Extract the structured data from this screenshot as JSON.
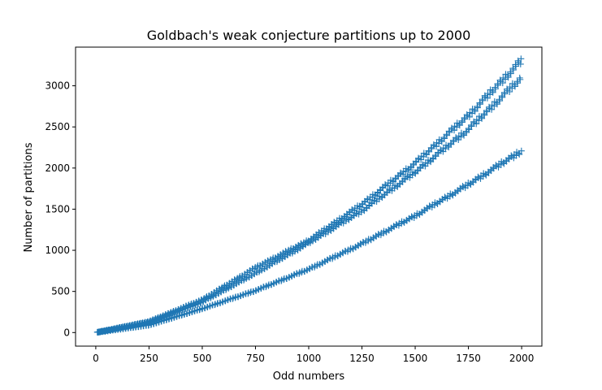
{
  "chart_data": {
    "type": "scatter",
    "title": "Goldbach's weak conjecture partitions up to 2000",
    "xlabel": "Odd numbers",
    "ylabel": "Number of partitions",
    "xlim": [
      -95,
      2095
    ],
    "ylim": [
      -165,
      3470
    ],
    "xticks": [
      0,
      250,
      500,
      750,
      1000,
      1250,
      1500,
      1750,
      2000
    ],
    "yticks": [
      0,
      500,
      1000,
      1500,
      2000,
      2500,
      3000
    ],
    "marker": "+",
    "grid": false,
    "legend": "none",
    "color": "#1f77b4",
    "x_range": [
      7,
      1999
    ],
    "x_step": 2,
    "bands": [
      {
        "description_only": false,
        "values": [
          [
            0,
            0
          ],
          [
            250,
            135
          ],
          [
            500,
            400
          ],
          [
            750,
            790
          ],
          [
            1000,
            1120
          ],
          [
            1250,
            1560
          ],
          [
            1500,
            2060
          ],
          [
            1750,
            2640
          ],
          [
            2000,
            3310
          ]
        ]
      },
      {
        "description_only": false,
        "values": [
          [
            0,
            0
          ],
          [
            250,
            125
          ],
          [
            500,
            370
          ],
          [
            750,
            720
          ],
          [
            1000,
            1090
          ],
          [
            1250,
            1480
          ],
          [
            1500,
            1950
          ],
          [
            1750,
            2470
          ],
          [
            2000,
            3100
          ]
        ]
      },
      {
        "description_only": false,
        "values": [
          [
            0,
            0
          ],
          [
            250,
            90
          ],
          [
            500,
            290
          ],
          [
            750,
            510
          ],
          [
            1000,
            770
          ],
          [
            1250,
            1080
          ],
          [
            1500,
            1420
          ],
          [
            1750,
            1800
          ],
          [
            2000,
            2210
          ]
        ]
      }
    ]
  }
}
